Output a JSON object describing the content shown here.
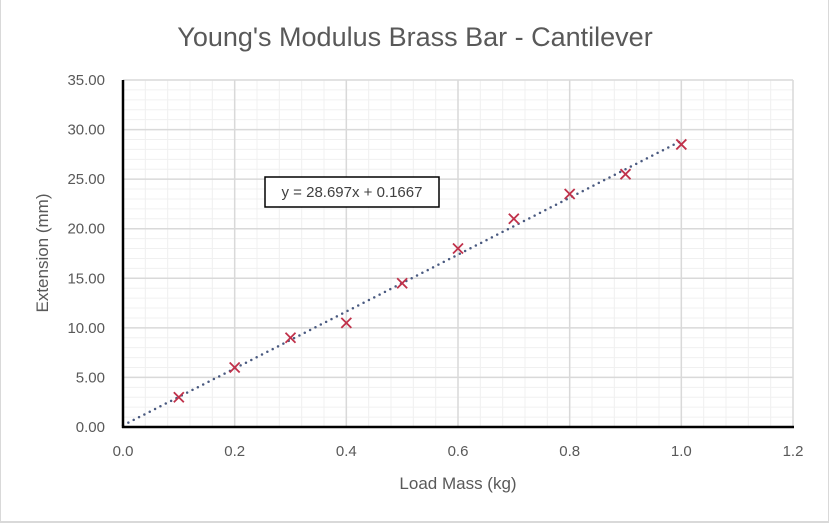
{
  "chart_data": {
    "type": "scatter",
    "title": "Young's Modulus Brass Bar - Cantilever",
    "xlabel": "Load Mass (kg)",
    "ylabel": "Extension (mm)",
    "xlim": [
      0,
      1.2
    ],
    "ylim": [
      0,
      35
    ],
    "x_ticks": [
      "0.0",
      "0.2",
      "0.4",
      "0.6",
      "0.8",
      "1.0",
      "1.2"
    ],
    "y_ticks": [
      "0.00",
      "5.00",
      "10.00",
      "15.00",
      "20.00",
      "25.00",
      "30.00",
      "35.00"
    ],
    "grid": true,
    "legend": "none",
    "series": [
      {
        "name": "Extension",
        "marker": "x",
        "color": "#c0314a",
        "x": [
          0.1,
          0.2,
          0.3,
          0.4,
          0.5,
          0.6,
          0.7,
          0.8,
          0.9,
          1.0
        ],
        "y": [
          3.0,
          6.0,
          9.0,
          10.5,
          14.5,
          18.0,
          21.0,
          23.5,
          25.5,
          28.5
        ]
      }
    ],
    "trendline": {
      "type": "linear",
      "slope": 28.697,
      "intercept": 0.1667,
      "style": "dotted",
      "color": "#4a5a80",
      "x_range": [
        0,
        1.0
      ],
      "equation_label": "y = 28.697x + 0.1667"
    }
  },
  "colors": {
    "text": "#595959",
    "major_grid": "#d9d9d9",
    "minor_grid": "#f0f0f0",
    "plot_border": "#000000",
    "marker": "#c0314a",
    "trendline": "#4a5a80"
  }
}
